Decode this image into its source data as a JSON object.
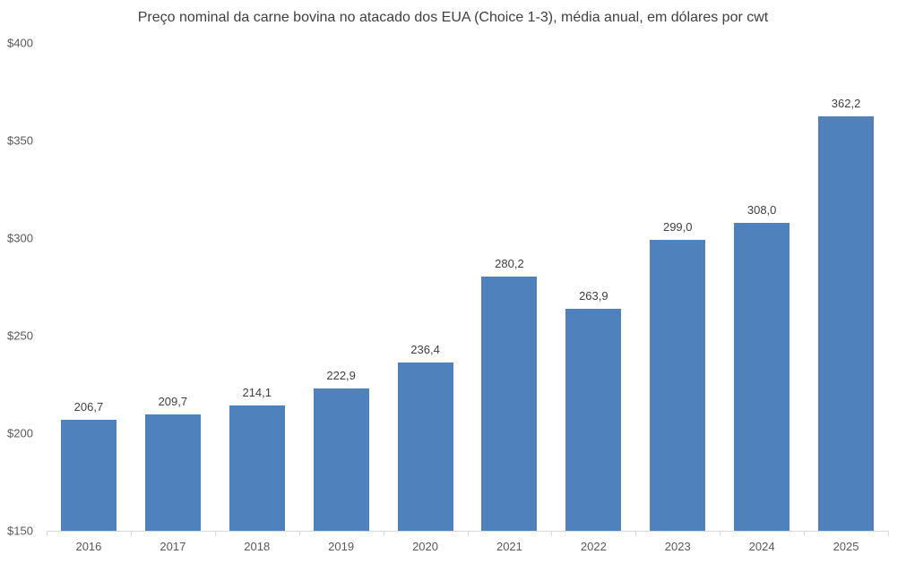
{
  "chart_data": {
    "type": "bar",
    "title": "Preço nominal da carne bovina no atacado dos EUA (Choice 1-3), média anual, em dólares por cwt",
    "xlabel": "",
    "ylabel": "",
    "ylim": [
      150,
      400
    ],
    "yticks": [
      150,
      200,
      250,
      300,
      350,
      400
    ],
    "ytick_labels": [
      "$150",
      "$200",
      "$250",
      "$300",
      "$350",
      "$400"
    ],
    "categories": [
      "2016",
      "2017",
      "2018",
      "2019",
      "2020",
      "2021",
      "2022",
      "2023",
      "2024",
      "2025"
    ],
    "values": [
      206.7,
      209.7,
      214.1,
      222.9,
      236.4,
      280.2,
      263.9,
      299.0,
      308.0,
      362.2
    ],
    "value_labels": [
      "206,7",
      "209,7",
      "214,1",
      "222,9",
      "236,4",
      "280,2",
      "263,9",
      "299,0",
      "308,0",
      "362,2"
    ],
    "bar_color": "#4f81bd",
    "grid": false,
    "legend": null
  }
}
